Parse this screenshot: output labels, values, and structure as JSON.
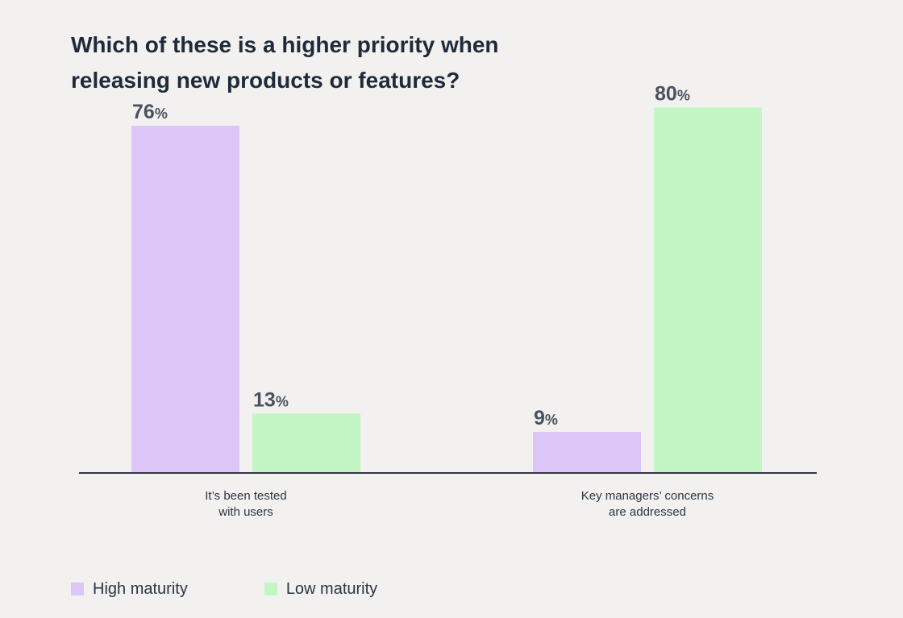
{
  "title_lines": [
    "Which of these is a higher priority when",
    "releasing new products or features?"
  ],
  "colors": {
    "high": "#dcc6f7",
    "low": "#c4f5c5",
    "axis": "#2f3542",
    "value_text": "#4a5260",
    "category_text": "#2d3441"
  },
  "legend": [
    {
      "label": "High maturity",
      "color": "#dcc6f7"
    },
    {
      "label": "Low maturity",
      "color": "#c4f5c5"
    }
  ],
  "chart_data": {
    "type": "bar",
    "title": "Which of these is a higher priority when releasing new products or features?",
    "categories": [
      [
        "It’s been tested",
        "with users"
      ],
      [
        "Key managers’ concerns",
        "are addressed"
      ]
    ],
    "series": [
      {
        "name": "High maturity",
        "values": [
          76,
          9
        ],
        "color": "#dcc6f7"
      },
      {
        "name": "Low maturity",
        "values": [
          13,
          80
        ],
        "color": "#c4f5c5"
      }
    ],
    "value_suffix": "%",
    "ylim": [
      0,
      100
    ],
    "grid": false,
    "legend_position": "bottom-left"
  }
}
